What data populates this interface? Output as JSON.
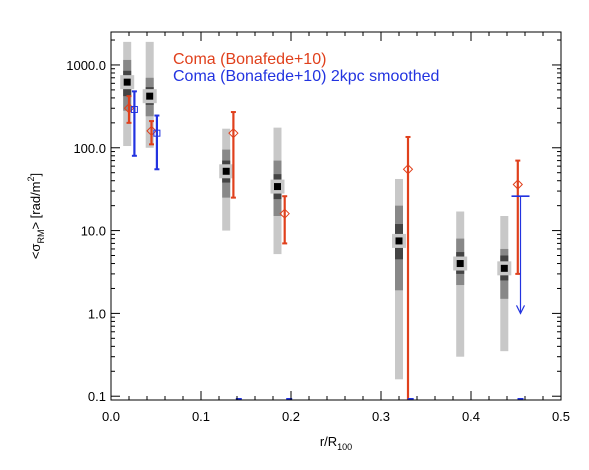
{
  "chart_data": {
    "type": "scatter",
    "xlabel": "r/R",
    "xlabel_sub": "100",
    "ylabel_parts": [
      "<σ",
      "RM",
      "> [rad/m",
      "2",
      "]"
    ],
    "x_range": [
      0.0,
      0.5
    ],
    "y_range": [
      0.09,
      2500
    ],
    "y_scale": "log",
    "x_ticks": [
      {
        "value": 0.0,
        "label": "0.0"
      },
      {
        "value": 0.1,
        "label": "0.1"
      },
      {
        "value": 0.2,
        "label": "0.2"
      },
      {
        "value": 0.3,
        "label": "0.3"
      },
      {
        "value": 0.4,
        "label": "0.4"
      },
      {
        "value": 0.5,
        "label": "0.5"
      }
    ],
    "y_ticks": [
      {
        "value": 0.1,
        "label": "0.1"
      },
      {
        "value": 1,
        "label": "1.0"
      },
      {
        "value": 10,
        "label": "10.0"
      },
      {
        "value": 100,
        "label": "100.0"
      },
      {
        "value": 1000,
        "label": "1000.0"
      }
    ],
    "legend": {
      "placement": "top",
      "entries": [
        {
          "label": "Coma (Bonafede+10)",
          "color": "#e0401c"
        },
        {
          "label": "Coma (Bonafede+10) 2kpc smoothed",
          "color": "#2233e0"
        }
      ]
    },
    "colors": {
      "gray_outer": "#c8c8c8",
      "gray_mid": "#888888",
      "gray_inner": "#444444",
      "median": "#000000",
      "red": "#e0401c",
      "blue": "#2233e0"
    },
    "simulation_series": [
      {
        "x": 0.018,
        "median": 620,
        "outer": [
          105,
          1900
        ],
        "mid": [
          280,
          1150
        ],
        "inner": [
          420,
          850
        ]
      },
      {
        "x": 0.043,
        "median": 420,
        "outer": [
          100,
          1900
        ],
        "mid": [
          240,
          700
        ],
        "inner": [
          330,
          540
        ]
      },
      {
        "x": 0.128,
        "median": 52,
        "outer": [
          10,
          170
        ],
        "mid": [
          25,
          95
        ],
        "inner": [
          38,
          70
        ]
      },
      {
        "x": 0.185,
        "median": 34,
        "outer": [
          5.2,
          175
        ],
        "mid": [
          15,
          70
        ],
        "inner": [
          24,
          48
        ]
      },
      {
        "x": 0.32,
        "median": 7.5,
        "outer": [
          0.16,
          42
        ],
        "mid": [
          1.9,
          20
        ],
        "inner": [
          4.5,
          12
        ]
      },
      {
        "x": 0.388,
        "median": 4.0,
        "outer": [
          0.3,
          17
        ],
        "mid": [
          2.2,
          8
        ],
        "inner": [
          3.0,
          5.5
        ]
      },
      {
        "x": 0.437,
        "median": 3.5,
        "outer": [
          0.35,
          15
        ],
        "mid": [
          1.5,
          6
        ],
        "inner": [
          2.5,
          5
        ]
      }
    ],
    "red_series": [
      {
        "x": 0.02,
        "y": 300,
        "err_low": 200,
        "err_high": 420
      },
      {
        "x": 0.045,
        "y": 160,
        "err_low": 110,
        "err_high": 210
      },
      {
        "x": 0.136,
        "y": 150,
        "err_low": 25,
        "err_high": 270
      },
      {
        "x": 0.193,
        "y": 16,
        "err_low": 7,
        "err_high": 26
      },
      {
        "x": 0.33,
        "y": 55,
        "err_low": 0.09,
        "err_high": 135
      },
      {
        "x": 0.452,
        "y": 36,
        "err_low": 3,
        "err_high": 70
      }
    ],
    "blue_series": [
      {
        "x": 0.026,
        "y": 290,
        "err_low": 80,
        "err_high": 480
      },
      {
        "x": 0.051,
        "y": 150,
        "err_low": 55,
        "err_high": 245
      },
      {
        "x": 0.455,
        "upper_limit": 26,
        "arrow_to": 1.0
      }
    ],
    "blue_floor_ticks": [
      0.142,
      0.198,
      0.333,
      0.455
    ]
  }
}
